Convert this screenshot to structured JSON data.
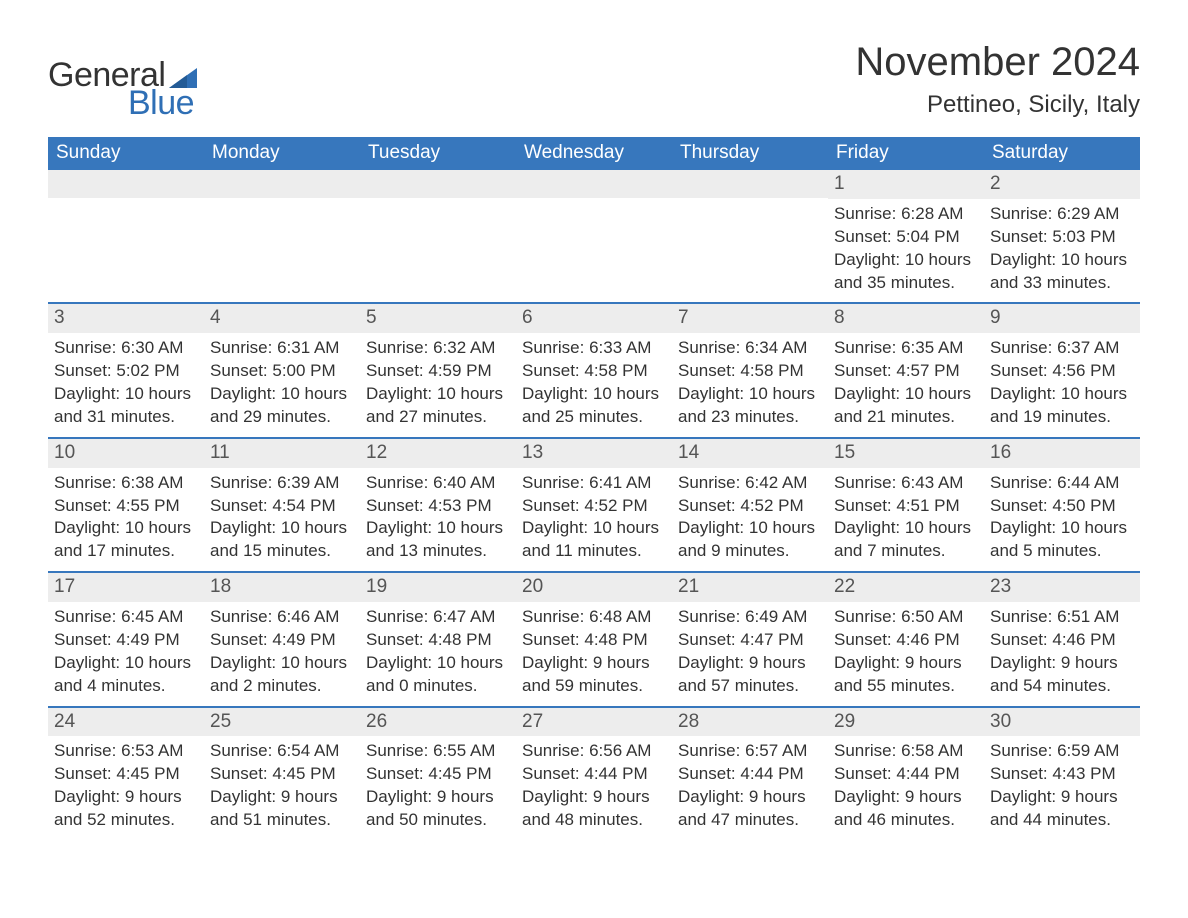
{
  "brand": {
    "word1": "General",
    "word2": "Blue",
    "text_color": "#333333",
    "accent_color": "#2f6fb5"
  },
  "title": "November 2024",
  "location": "Pettineo, Sicily, Italy",
  "header_bg": "#3777bd",
  "header_text_color": "#ffffff",
  "row_separator_color": "#3777bd",
  "daynum_bg": "#ededed",
  "background_color": "#ffffff",
  "body_text_color": "#333333",
  "font_family": "Arial, Helvetica, sans-serif",
  "title_fontsize": 40,
  "location_fontsize": 24,
  "header_fontsize": 19,
  "daynum_fontsize": 19,
  "body_fontsize": 17,
  "columns": [
    "Sunday",
    "Monday",
    "Tuesday",
    "Wednesday",
    "Thursday",
    "Friday",
    "Saturday"
  ],
  "weeks": [
    [
      null,
      null,
      null,
      null,
      null,
      {
        "n": "1",
        "sunrise": "6:28 AM",
        "sunset": "5:04 PM",
        "dl1": "Daylight: 10 hours",
        "dl2": "and 35 minutes."
      },
      {
        "n": "2",
        "sunrise": "6:29 AM",
        "sunset": "5:03 PM",
        "dl1": "Daylight: 10 hours",
        "dl2": "and 33 minutes."
      }
    ],
    [
      {
        "n": "3",
        "sunrise": "6:30 AM",
        "sunset": "5:02 PM",
        "dl1": "Daylight: 10 hours",
        "dl2": "and 31 minutes."
      },
      {
        "n": "4",
        "sunrise": "6:31 AM",
        "sunset": "5:00 PM",
        "dl1": "Daylight: 10 hours",
        "dl2": "and 29 minutes."
      },
      {
        "n": "5",
        "sunrise": "6:32 AM",
        "sunset": "4:59 PM",
        "dl1": "Daylight: 10 hours",
        "dl2": "and 27 minutes."
      },
      {
        "n": "6",
        "sunrise": "6:33 AM",
        "sunset": "4:58 PM",
        "dl1": "Daylight: 10 hours",
        "dl2": "and 25 minutes."
      },
      {
        "n": "7",
        "sunrise": "6:34 AM",
        "sunset": "4:58 PM",
        "dl1": "Daylight: 10 hours",
        "dl2": "and 23 minutes."
      },
      {
        "n": "8",
        "sunrise": "6:35 AM",
        "sunset": "4:57 PM",
        "dl1": "Daylight: 10 hours",
        "dl2": "and 21 minutes."
      },
      {
        "n": "9",
        "sunrise": "6:37 AM",
        "sunset": "4:56 PM",
        "dl1": "Daylight: 10 hours",
        "dl2": "and 19 minutes."
      }
    ],
    [
      {
        "n": "10",
        "sunrise": "6:38 AM",
        "sunset": "4:55 PM",
        "dl1": "Daylight: 10 hours",
        "dl2": "and 17 minutes."
      },
      {
        "n": "11",
        "sunrise": "6:39 AM",
        "sunset": "4:54 PM",
        "dl1": "Daylight: 10 hours",
        "dl2": "and 15 minutes."
      },
      {
        "n": "12",
        "sunrise": "6:40 AM",
        "sunset": "4:53 PM",
        "dl1": "Daylight: 10 hours",
        "dl2": "and 13 minutes."
      },
      {
        "n": "13",
        "sunrise": "6:41 AM",
        "sunset": "4:52 PM",
        "dl1": "Daylight: 10 hours",
        "dl2": "and 11 minutes."
      },
      {
        "n": "14",
        "sunrise": "6:42 AM",
        "sunset": "4:52 PM",
        "dl1": "Daylight: 10 hours",
        "dl2": "and 9 minutes."
      },
      {
        "n": "15",
        "sunrise": "6:43 AM",
        "sunset": "4:51 PM",
        "dl1": "Daylight: 10 hours",
        "dl2": "and 7 minutes."
      },
      {
        "n": "16",
        "sunrise": "6:44 AM",
        "sunset": "4:50 PM",
        "dl1": "Daylight: 10 hours",
        "dl2": "and 5 minutes."
      }
    ],
    [
      {
        "n": "17",
        "sunrise": "6:45 AM",
        "sunset": "4:49 PM",
        "dl1": "Daylight: 10 hours",
        "dl2": "and 4 minutes."
      },
      {
        "n": "18",
        "sunrise": "6:46 AM",
        "sunset": "4:49 PM",
        "dl1": "Daylight: 10 hours",
        "dl2": "and 2 minutes."
      },
      {
        "n": "19",
        "sunrise": "6:47 AM",
        "sunset": "4:48 PM",
        "dl1": "Daylight: 10 hours",
        "dl2": "and 0 minutes."
      },
      {
        "n": "20",
        "sunrise": "6:48 AM",
        "sunset": "4:48 PM",
        "dl1": "Daylight: 9 hours",
        "dl2": "and 59 minutes."
      },
      {
        "n": "21",
        "sunrise": "6:49 AM",
        "sunset": "4:47 PM",
        "dl1": "Daylight: 9 hours",
        "dl2": "and 57 minutes."
      },
      {
        "n": "22",
        "sunrise": "6:50 AM",
        "sunset": "4:46 PM",
        "dl1": "Daylight: 9 hours",
        "dl2": "and 55 minutes."
      },
      {
        "n": "23",
        "sunrise": "6:51 AM",
        "sunset": "4:46 PM",
        "dl1": "Daylight: 9 hours",
        "dl2": "and 54 minutes."
      }
    ],
    [
      {
        "n": "24",
        "sunrise": "6:53 AM",
        "sunset": "4:45 PM",
        "dl1": "Daylight: 9 hours",
        "dl2": "and 52 minutes."
      },
      {
        "n": "25",
        "sunrise": "6:54 AM",
        "sunset": "4:45 PM",
        "dl1": "Daylight: 9 hours",
        "dl2": "and 51 minutes."
      },
      {
        "n": "26",
        "sunrise": "6:55 AM",
        "sunset": "4:45 PM",
        "dl1": "Daylight: 9 hours",
        "dl2": "and 50 minutes."
      },
      {
        "n": "27",
        "sunrise": "6:56 AM",
        "sunset": "4:44 PM",
        "dl1": "Daylight: 9 hours",
        "dl2": "and 48 minutes."
      },
      {
        "n": "28",
        "sunrise": "6:57 AM",
        "sunset": "4:44 PM",
        "dl1": "Daylight: 9 hours",
        "dl2": "and 47 minutes."
      },
      {
        "n": "29",
        "sunrise": "6:58 AM",
        "sunset": "4:44 PM",
        "dl1": "Daylight: 9 hours",
        "dl2": "and 46 minutes."
      },
      {
        "n": "30",
        "sunrise": "6:59 AM",
        "sunset": "4:43 PM",
        "dl1": "Daylight: 9 hours",
        "dl2": "and 44 minutes."
      }
    ]
  ]
}
